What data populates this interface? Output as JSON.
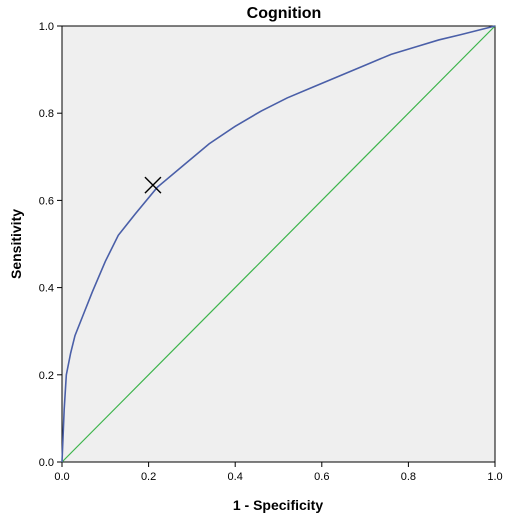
{
  "chart_data": {
    "type": "line",
    "title": "Cognition",
    "xlabel": "1 - Specificity",
    "ylabel": "Sensitivity",
    "xlim": [
      0,
      1
    ],
    "ylim": [
      0,
      1
    ],
    "xticks": [
      "0.0",
      "0.2",
      "0.4",
      "0.6",
      "0.8",
      "1.0"
    ],
    "yticks": [
      "0.0",
      "0.2",
      "0.4",
      "0.6",
      "0.8",
      "1.0"
    ],
    "grid": false,
    "legend": "none",
    "colors": {
      "plot_background": "#efefef",
      "roc_curve": "#4a5fa8",
      "reference_line": "#3cb44b",
      "marker": "#000000"
    },
    "series": [
      {
        "x": [
          0,
          0.005,
          0.01,
          0.02,
          0.03,
          0.05,
          0.07,
          0.1,
          0.13,
          0.17,
          0.22,
          0.28,
          0.34,
          0.4,
          0.46,
          0.52,
          0.58,
          0.64,
          0.7,
          0.76,
          0.82,
          0.87,
          0.92,
          0.96,
          1.0
        ],
        "y": [
          0,
          0.12,
          0.2,
          0.25,
          0.29,
          0.34,
          0.39,
          0.46,
          0.52,
          0.57,
          0.63,
          0.68,
          0.73,
          0.77,
          0.805,
          0.835,
          0.86,
          0.885,
          0.91,
          0.935,
          0.953,
          0.968,
          0.98,
          0.99,
          1.0
        ]
      },
      {
        "x": [
          0,
          1
        ],
        "y": [
          0,
          1
        ]
      }
    ],
    "annotations": [
      {
        "type": "cross-marker",
        "x": 0.21,
        "y": 0.635
      }
    ]
  }
}
